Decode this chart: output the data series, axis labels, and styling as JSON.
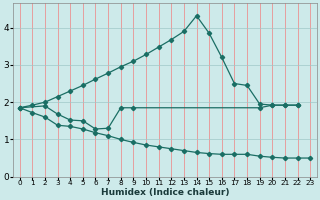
{
  "bg_color": "#cdeaea",
  "grid_color_v": "#f08080",
  "grid_color_h": "#a0c8c8",
  "line_color": "#1a6e64",
  "xlabel": "Humidex (Indice chaleur)",
  "xlim": [
    -0.5,
    23.5
  ],
  "ylim": [
    0,
    4.65
  ],
  "yticks": [
    0,
    1,
    2,
    3,
    4
  ],
  "xticks": [
    0,
    1,
    2,
    3,
    4,
    5,
    6,
    7,
    8,
    9,
    10,
    11,
    12,
    13,
    14,
    15,
    16,
    17,
    18,
    19,
    20,
    21,
    22,
    23
  ],
  "line1_x": [
    0,
    1,
    2,
    3,
    4,
    5,
    6,
    7,
    8,
    9,
    10,
    11,
    12,
    13,
    14,
    15,
    16,
    17,
    18,
    19,
    20,
    21,
    22
  ],
  "line1_y": [
    1.85,
    1.92,
    2.0,
    2.15,
    2.3,
    2.45,
    2.62,
    2.78,
    2.95,
    3.1,
    3.28,
    3.48,
    3.68,
    3.9,
    4.32,
    3.85,
    3.2,
    2.5,
    2.45,
    1.95,
    1.92,
    1.92,
    1.92
  ],
  "line2_x": [
    0,
    2,
    3,
    4,
    5,
    6,
    7,
    8,
    9,
    19,
    20,
    21,
    22
  ],
  "line2_y": [
    1.85,
    1.9,
    1.68,
    1.52,
    1.5,
    1.28,
    1.3,
    1.85,
    1.85,
    1.85,
    1.92,
    1.92,
    1.92
  ],
  "line3_x": [
    0,
    1,
    2,
    3,
    4,
    5,
    6,
    7,
    8,
    9,
    10,
    11,
    12,
    13,
    14,
    15,
    16,
    17,
    18,
    19,
    20,
    21,
    22,
    23
  ],
  "line3_y": [
    1.85,
    1.72,
    1.6,
    1.38,
    1.35,
    1.28,
    1.18,
    1.1,
    1.0,
    0.92,
    0.85,
    0.8,
    0.75,
    0.7,
    0.65,
    0.62,
    0.6,
    0.6,
    0.6,
    0.55,
    0.52,
    0.5,
    0.5,
    0.5
  ]
}
